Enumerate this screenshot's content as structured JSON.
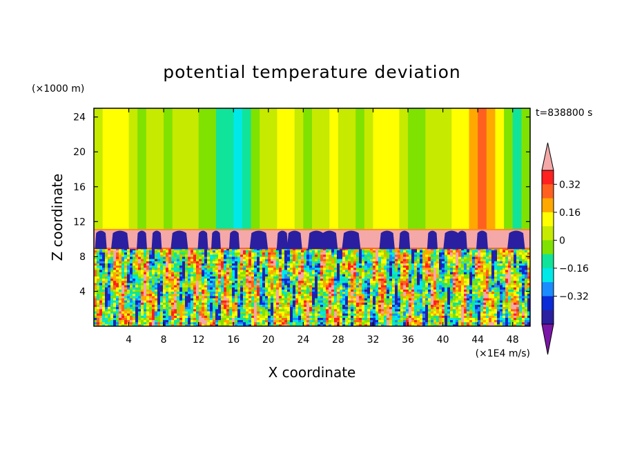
{
  "chart_data": {
    "type": "heatmap",
    "title": "potential temperature deviation",
    "time_label": "t=838800 s",
    "xlabel": "X coordinate",
    "ylabel": "Z coordinate",
    "x_unit": "(×1E4 m/s)",
    "y_unit": "(×1000 m)",
    "xlim": [
      0,
      50
    ],
    "ylim": [
      0,
      25
    ],
    "x_ticks": [
      4,
      8,
      12,
      16,
      20,
      24,
      28,
      32,
      36,
      40,
      44,
      48
    ],
    "y_ticks": [
      4,
      8,
      12,
      16,
      20,
      24
    ],
    "colorbar": {
      "levels": [
        -0.48,
        -0.4,
        -0.32,
        -0.24,
        -0.16,
        -0.08,
        0,
        0.08,
        0.16,
        0.24,
        0.32,
        0.4
      ],
      "colors": [
        "#7a16a6",
        "#2a1fa0",
        "#0a2bd6",
        "#1a8cff",
        "#00e8e8",
        "#10e49a",
        "#7fe200",
        "#c6ea00",
        "#ffff00",
        "#ffa800",
        "#ff6020",
        "#ff2020",
        "#f5a8a8"
      ],
      "tick_labels": [
        "0.32",
        "0.16",
        "0",
        "−0.16",
        "−0.32"
      ],
      "tick_values": [
        0.32,
        0.16,
        0,
        -0.16,
        -0.32
      ]
    },
    "upper_layer": {
      "z_range": [
        11,
        25
      ],
      "column_values": [
        0.02,
        0.08,
        0.14,
        0.1,
        0.04,
        -0.02,
        0.0,
        0.04,
        -0.04,
        0.02,
        0.06,
        0.0,
        -0.03,
        -0.06,
        -0.12,
        -0.16,
        -0.18,
        -0.1,
        -0.05,
        0.02,
        0.06,
        0.12,
        0.08,
        0.03,
        -0.02,
        0.0,
        0.04,
        0.1,
        0.06,
        0.0,
        -0.04,
        0.02,
        0.08,
        0.14,
        0.1,
        0.02,
        -0.04,
        -0.08,
        0.0,
        0.06,
        0.02,
        0.08,
        0.14,
        0.2,
        0.24,
        0.16,
        0.08,
        -0.04,
        -0.1,
        -0.06
      ]
    },
    "inversion_layer": {
      "z_range": [
        9,
        11
      ],
      "value": 0.44,
      "plume_x": [
        0.8,
        3.0,
        5.5,
        7.2,
        9.8,
        12.5,
        14.0,
        16.1,
        18.9,
        21.6,
        23.0,
        25.5,
        27.0,
        29.5,
        33.6,
        35.6,
        38.8,
        41.0,
        42.2,
        44.5,
        48.4
      ],
      "plume_value": -0.46
    },
    "boundary_layer": {
      "z_range": [
        0,
        9
      ],
      "min_value": -0.48,
      "max_value": 0.44
    }
  }
}
